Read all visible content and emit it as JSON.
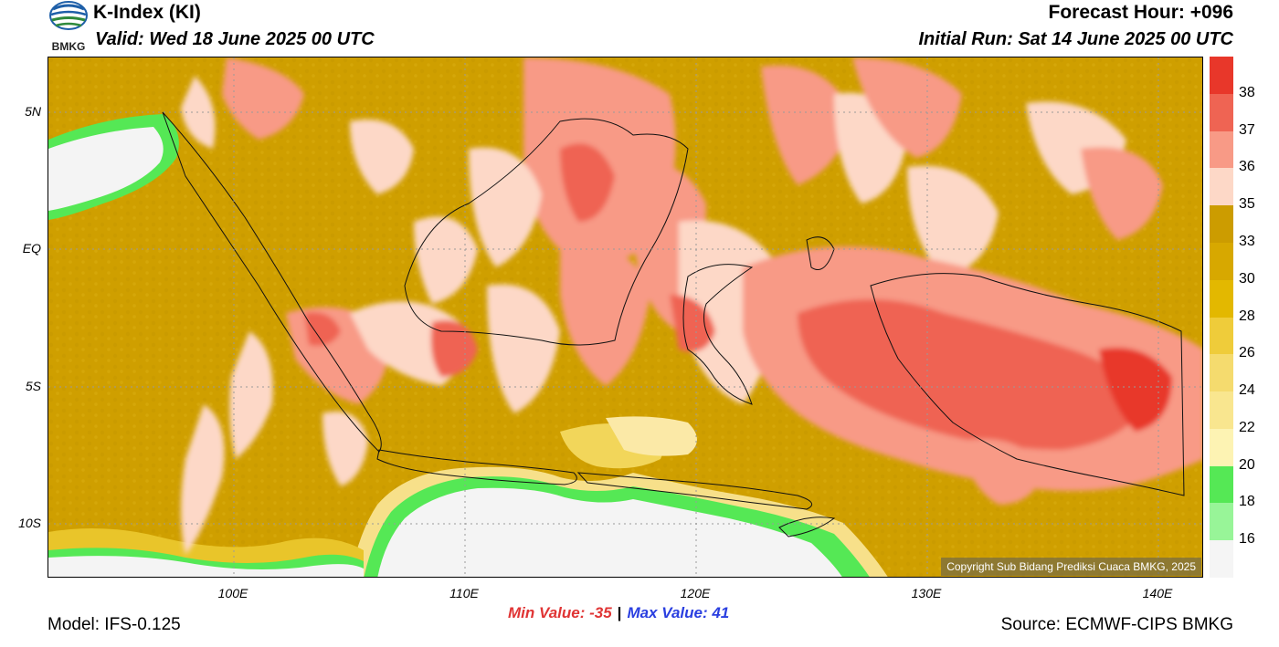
{
  "header": {
    "title": "K-Index (KI)",
    "valid": "Valid: Wed 18 June 2025 00 UTC",
    "forecast_hour": "Forecast Hour: +096",
    "initial_run": "Initial Run: Sat 14 June 2025 00 UTC"
  },
  "logo": {
    "text": "BMKG",
    "icon": "bmkg-logo-icon"
  },
  "axes": {
    "lat_labels": [
      "5N",
      "EQ",
      "5S",
      "10S"
    ],
    "lon_labels": [
      "100E",
      "110E",
      "120E",
      "130E",
      "140E"
    ]
  },
  "colorbar": {
    "labels": [
      "38",
      "37",
      "36",
      "35",
      "33",
      "30",
      "28",
      "26",
      "24",
      "22",
      "20",
      "18",
      "16"
    ],
    "colors": [
      "#e8372a",
      "#ef6453",
      "#f89a86",
      "#fdd8c7",
      "#cc9c00",
      "#d7a800",
      "#e3b800",
      "#efcc3a",
      "#f5db6e",
      "#f9e68f",
      "#fdf3b3",
      "#55e855",
      "#98f598",
      "#f5f5f5"
    ]
  },
  "copyright": "Copyright Sub Bidang Prediksi Cuaca BMKG, 2025",
  "stats": {
    "min": "Min Value: -35",
    "separator": "|",
    "max": "Max Value:  41"
  },
  "footer": {
    "model": "Model: IFS-0.125",
    "source": "Source: ECMWF-CIPS BMKG"
  }
}
